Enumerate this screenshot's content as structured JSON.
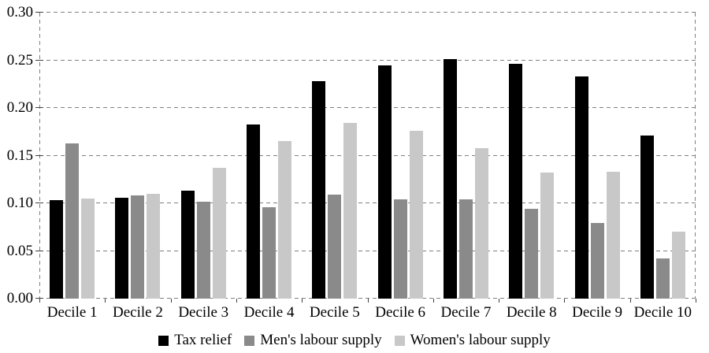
{
  "chart_data": {
    "type": "bar",
    "title": "",
    "xlabel": "",
    "ylabel": "",
    "categories": [
      "Decile 1",
      "Decile 2",
      "Decile 3",
      "Decile 4",
      "Decile 5",
      "Decile 6",
      "Decile 7",
      "Decile 8",
      "Decile 9",
      "Decile 10"
    ],
    "series": [
      {
        "name": "Tax relief",
        "color": "#000000",
        "values": [
          0.103,
          0.106,
          0.113,
          0.183,
          0.228,
          0.245,
          0.251,
          0.246,
          0.233,
          0.171
        ]
      },
      {
        "name": "Men's labour supply",
        "color": "#8a8a8a",
        "values": [
          0.163,
          0.108,
          0.102,
          0.096,
          0.109,
          0.104,
          0.104,
          0.094,
          0.079,
          0.042
        ]
      },
      {
        "name": "Women's labour supply",
        "color": "#c8c8c8",
        "values": [
          0.105,
          0.11,
          0.137,
          0.165,
          0.184,
          0.176,
          0.158,
          0.132,
          0.133,
          0.07
        ]
      }
    ],
    "ylim": [
      0,
      0.3
    ],
    "yticks": [
      0.0,
      0.05,
      0.1,
      0.15,
      0.2,
      0.25,
      0.3
    ],
    "ytick_decimals": 2,
    "grid": "dashed-horizontal",
    "plot_border": "dashed-left-right",
    "legend_position": "bottom-center"
  },
  "colors": {
    "background": "#ffffff",
    "grid": "#7f7f7f",
    "tick": "#404040",
    "text": "#000000"
  }
}
